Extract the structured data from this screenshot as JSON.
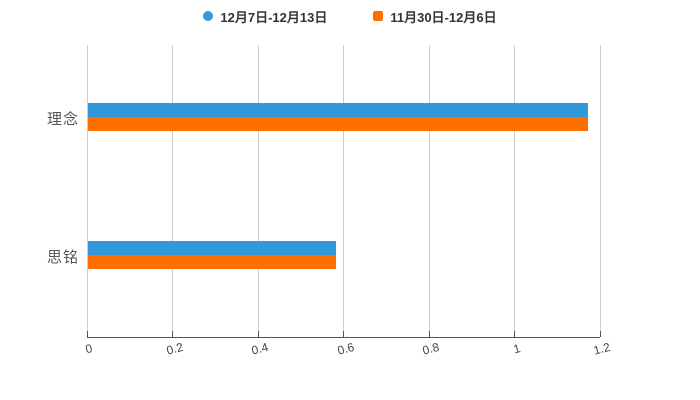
{
  "chart_data": {
    "type": "bar",
    "orientation": "horizontal",
    "title": "",
    "xlabel": "",
    "ylabel": "",
    "categories": [
      "理念",
      "思铭"
    ],
    "series": [
      {
        "name": "12月7日-12月13日",
        "color": "#3398db",
        "marker": "circle",
        "values": [
          1.17,
          0.58
        ]
      },
      {
        "name": "11月30日-12月6日",
        "color": "#ff6f00",
        "marker": "square",
        "values": [
          1.17,
          0.58
        ]
      }
    ],
    "xlim": [
      0,
      1.2
    ],
    "xticks": [
      0,
      0.2,
      0.4,
      0.6,
      0.8,
      1,
      1.2
    ],
    "xticklabels": [
      "0",
      "0.2",
      "0.4",
      "0.6",
      "0.8",
      "1",
      "1.2"
    ],
    "grid": true,
    "legend_position": "top"
  },
  "colors": {
    "background": "#ffffff",
    "grid": "#cccccc",
    "axis": "#555555",
    "tick_label": "#444444",
    "category_label": "#555555",
    "legend_text": "#333333"
  }
}
